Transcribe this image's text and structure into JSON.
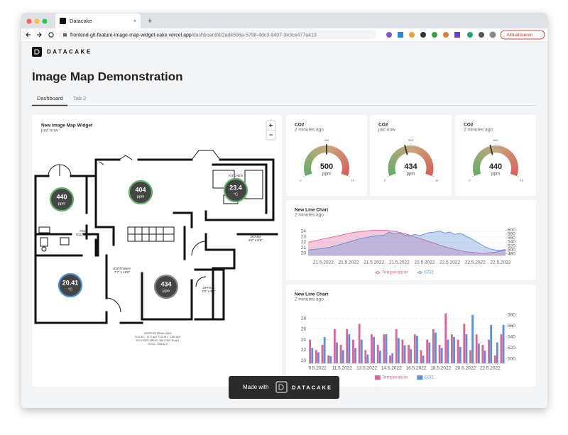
{
  "browser": {
    "tab_title": "Datacake",
    "new_tab": "+",
    "url_host": "frontend-git-feature-image-map-widget-cake.vercel.app",
    "url_path": "/dashboard/d/2ad4596a-5798-4dc3-9407-3e3ce477a413",
    "update_button": "Aktualisieren"
  },
  "header": {
    "logo": "DATACAKE",
    "title": "Image Map Demonstration",
    "tabs": [
      "Dashboard",
      "Tab 2"
    ]
  },
  "image_map": {
    "title": "New Image Map Widget",
    "updated": "just now",
    "zoom_in": "+",
    "zoom_out": "−",
    "rooms": [
      "KITCHEN",
      "HALL",
      "9'11\" x 3'6\"",
      "ROOM",
      "9'2\" x 6'6\"",
      "ENTRYWAY",
      "7'7\" x 19'9\"",
      "OFFICE",
      "7'0\" x 9'6\""
    ],
    "area_note": [
      "GROSS INTERNAL AREA",
      "FLOOR 1 : 1072 sq ft, FLOOR 2 : 1294 sq ft",
      "EXCLUDED AREAS : BALCONY 35 sq ft",
      "TOTAL : 2366 sq ft"
    ],
    "markers": [
      {
        "value": 440,
        "unit": "ppm",
        "color": "#5fb36a"
      },
      {
        "value": 404,
        "unit": "ppm",
        "color": "#5fb36a"
      },
      {
        "value": 23.4,
        "unit": "°C",
        "color": "#5fb36a"
      },
      {
        "value": 20.41,
        "unit": "°C",
        "color": "#4a8fd6"
      },
      {
        "value": 434,
        "unit": "ppm",
        "color": "#8a8a8a"
      }
    ]
  },
  "chart_data": [
    {
      "type": "gauge",
      "title": "CO2",
      "subtitle": "2 minutes ago",
      "value": 500,
      "unit": "ppm",
      "ylim": [
        0,
        1000
      ],
      "yticks": [
        0,
        500,
        {
          "value": 1000,
          "label": "1k"
        }
      ],
      "colors": [
        "#63ad66",
        "#c8a67c",
        "#d95f58"
      ]
    },
    {
      "type": "gauge",
      "title": "CO2",
      "subtitle": "just now",
      "value": 434,
      "unit": "ppm",
      "ylim": [
        0,
        1000
      ],
      "yticks": [
        0,
        500,
        {
          "value": 1000,
          "label": "1k"
        }
      ],
      "colors": [
        "#63ad66",
        "#c8a67c",
        "#d95f58"
      ]
    },
    {
      "type": "gauge",
      "title": "CO2",
      "subtitle": "2 minutes ago",
      "value": 440,
      "unit": "ppm",
      "ylim": [
        0,
        1000
      ],
      "yticks": [
        0,
        500,
        {
          "value": 1000,
          "label": "1k"
        }
      ],
      "colors": [
        "#63ad66",
        "#c8a67c",
        "#d95f58"
      ]
    },
    {
      "type": "line",
      "title": "New Line Chart",
      "subtitle": "2 minutes ago",
      "categories": [
        null,
        null,
        null,
        "21.5.2022",
        null,
        null,
        null,
        null,
        "21.5.2022",
        null,
        null,
        null,
        null,
        "21.5.2022",
        null,
        null,
        null,
        null,
        "21.5.2022",
        null,
        null,
        null,
        null,
        "22.5.2022",
        null,
        null,
        null,
        null,
        "22.5.2022",
        null,
        null,
        null,
        null,
        "22.5.2022",
        null,
        null,
        null,
        null,
        "22.5.2022",
        null
      ],
      "series": [
        {
          "name": "Temperature",
          "color": "#e0609a",
          "values": [
            22.0,
            22.2,
            22.4,
            22.6,
            22.8,
            23.0,
            23.2,
            23.4,
            23.6,
            23.8,
            23.9,
            24.0,
            24.1,
            24.2,
            24.2,
            24.2,
            24.1,
            24.0,
            23.8,
            23.6,
            23.3,
            23.0,
            22.7,
            22.4,
            22.1,
            21.8,
            21.5,
            21.2,
            20.9,
            20.7,
            20.5,
            20.3,
            20.2,
            20.1,
            20.0,
            20.0,
            20.1,
            20.2,
            20.4,
            20.6
          ]
        },
        {
          "name": "CO2",
          "color": "#5b8fd8",
          "axis": "y2",
          "values": [
            500,
            502,
            505,
            508,
            512,
            518,
            525,
            532,
            540,
            548,
            555,
            560,
            565,
            570,
            572,
            575,
            590,
            580,
            585,
            575,
            570,
            578,
            572,
            580,
            588,
            590,
            595,
            585,
            590,
            578,
            585,
            572,
            560,
            545,
            530,
            515,
            505,
            500,
            498,
            502
          ]
        }
      ],
      "ylim": [
        19.6,
        24.5
      ],
      "yticks": [
        20,
        21,
        22,
        23,
        24
      ],
      "y2lim": [
        472,
        608
      ],
      "y2ticks": [
        480,
        500,
        520,
        540,
        560,
        580,
        600
      ],
      "grid": true
    },
    {
      "type": "bar",
      "title": "New Line Chart",
      "subtitle": "2 minutes ago",
      "categories": [
        null,
        "9.5.2022",
        null,
        null,
        null,
        "11.5.2022",
        null,
        null,
        null,
        "13.5.2022",
        null,
        null,
        null,
        "14.5.2022",
        null,
        null,
        null,
        "16.5.2022",
        null,
        null,
        null,
        "18.5.2022",
        null,
        null,
        null,
        "20.5.2022",
        null,
        null,
        null,
        "22.5.2022",
        null,
        null
      ],
      "series": [
        {
          "name": "Temperature",
          "color": "#e0609a",
          "values": [
            24,
            22,
            23,
            21,
            26,
            23,
            26,
            24,
            27,
            22,
            25,
            23,
            25,
            21,
            26,
            24,
            23,
            25,
            22,
            24,
            26,
            23,
            29,
            25,
            24,
            27,
            22,
            25,
            23,
            24,
            21,
            25
          ]
        },
        {
          "name": "CO2",
          "color": "#5b8fd8",
          "axis": "y2",
          "values": [
            520,
            512,
            540,
            505,
            530,
            516,
            545,
            520,
            535,
            508,
            540,
            515,
            545,
            510,
            538,
            525,
            518,
            542,
            506,
            530,
            548,
            520,
            535,
            540,
            522,
            545,
            580,
            528,
            515,
            562,
            530,
            562
          ]
        }
      ],
      "ylim": [
        19.5,
        29.2
      ],
      "yticks": [
        20,
        22,
        24,
        26,
        28
      ],
      "y2lim": [
        492,
        585
      ],
      "y2ticks": [
        500,
        520,
        540,
        560,
        580
      ],
      "grid": true
    }
  ],
  "footer": {
    "made_with": "Made with",
    "brand": "DATACAKE"
  }
}
